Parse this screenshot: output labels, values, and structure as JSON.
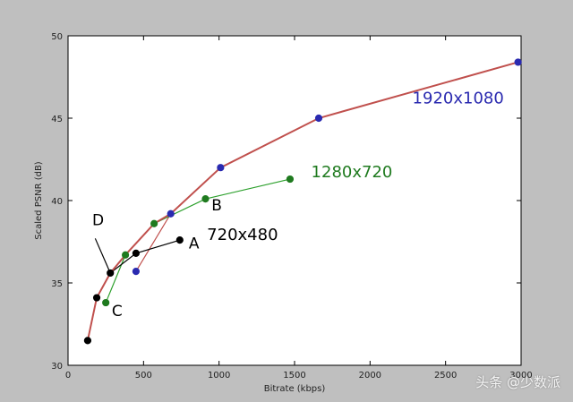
{
  "chart_data": {
    "type": "line",
    "title": "",
    "xlabel": "Bitrate (kbps)",
    "ylabel": "Scaled PSNR (dB)",
    "xlim": [
      0,
      3000
    ],
    "ylim": [
      30,
      50
    ],
    "xticks": [
      0,
      500,
      1000,
      1500,
      2000,
      2500,
      3000
    ],
    "yticks": [
      30,
      35,
      40,
      45,
      50
    ],
    "grid": false,
    "series": [
      {
        "name": "1920x1080",
        "color": "#2a2ab0",
        "line_color": "#c0504d",
        "x": [
          450,
          680,
          1010,
          1660,
          2980
        ],
        "y": [
          35.7,
          39.2,
          42.0,
          45.0,
          48.4
        ]
      },
      {
        "name": "1280x720",
        "color": "#1f7a1f",
        "line_color": "#2ca02c",
        "x": [
          250,
          380,
          570,
          910,
          1470
        ],
        "y": [
          33.8,
          36.7,
          38.6,
          40.1,
          41.3
        ]
      },
      {
        "name": "720x480",
        "color": "#000000",
        "line_color": "#000000",
        "x": [
          130,
          190,
          280,
          450,
          740
        ],
        "y": [
          31.5,
          34.1,
          35.6,
          36.8,
          37.6
        ]
      }
    ],
    "envelope": {
      "color": "#c0504d",
      "x": [
        130,
        190,
        280,
        380,
        570,
        680,
        1010,
        1660,
        2980
      ],
      "y": [
        31.5,
        34.1,
        35.6,
        36.7,
        38.6,
        39.2,
        42.0,
        45.0,
        48.4
      ]
    },
    "annotations": [
      {
        "text": "A",
        "x": 800,
        "y": 37.1
      },
      {
        "text": "B",
        "x": 950,
        "y": 39.4
      },
      {
        "text": "C",
        "x": 290,
        "y": 33.0
      },
      {
        "text": "D",
        "x": 160,
        "y": 38.5
      }
    ]
  },
  "watermark": "头条 @少数派"
}
